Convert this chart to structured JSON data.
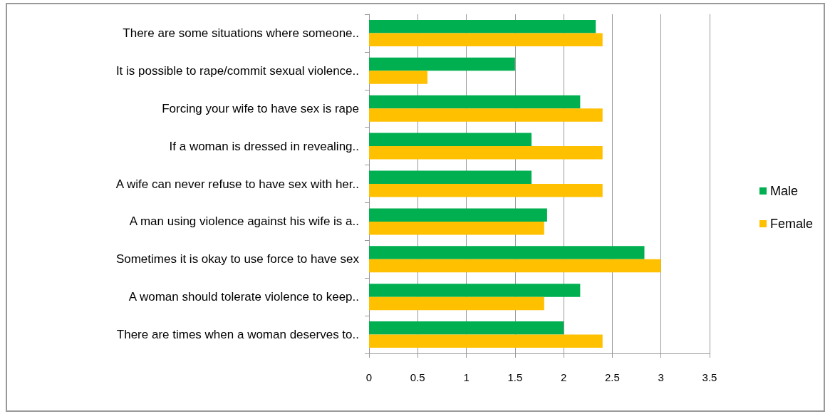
{
  "chart_data": {
    "type": "bar",
    "orientation": "horizontal",
    "categories": [
      "There are some situations where someone..",
      "It is possible to rape/commit sexual violence..",
      "Forcing your wife to have sex is rape",
      "If a woman is dressed in revealing..",
      "A wife can never refuse to have sex with her..",
      "A man using violence against his wife is a..",
      "Sometimes it is okay to use force to have sex",
      "A woman should tolerate violence to keep..",
      "There are times when a woman deserves to.."
    ],
    "series": [
      {
        "name": "Male",
        "color": "#00b050",
        "values": [
          2.33,
          1.5,
          2.17,
          1.67,
          1.67,
          1.83,
          2.83,
          2.17,
          2
        ]
      },
      {
        "name": "Female",
        "color": "#ffc000",
        "values": [
          2.4,
          0.6,
          2.4,
          2.4,
          2.4,
          1.8,
          3,
          1.8,
          2.4
        ]
      }
    ],
    "xlim": [
      0,
      3.5
    ],
    "xticks": [
      0,
      0.5,
      1,
      1.5,
      2,
      2.5,
      3,
      3.5
    ],
    "grid": "x",
    "legend": "right"
  }
}
